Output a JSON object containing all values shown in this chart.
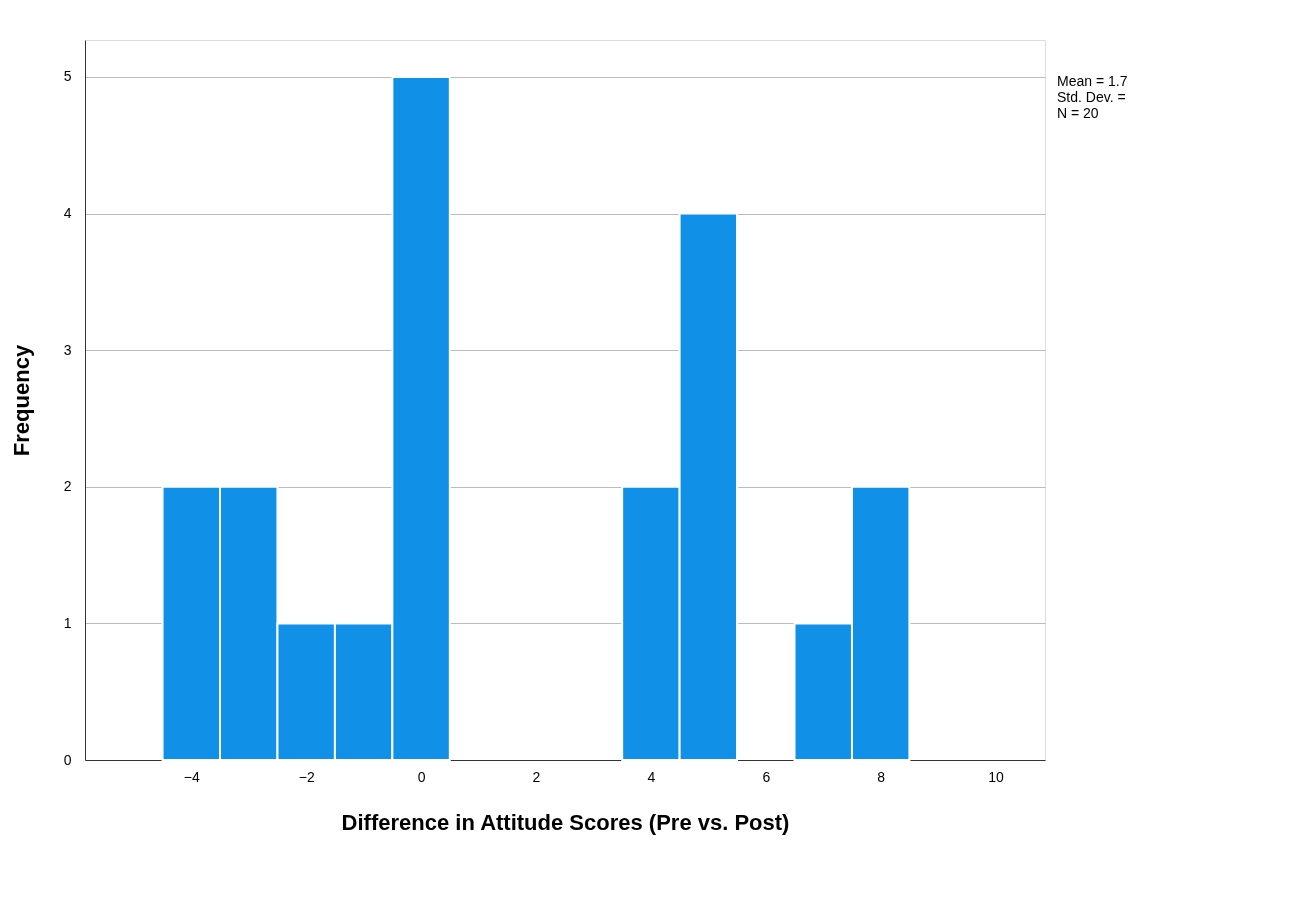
{
  "chart_data": {
    "type": "histogram",
    "xlabel": "Difference in Attitude Scores (Pre vs. Post)",
    "ylabel": "Frequency",
    "bins": [
      -4.5,
      -3.5,
      -2.5,
      -1.5,
      -0.5,
      0.5,
      1.5,
      2.5,
      3.5,
      4.5,
      5.5,
      6.5,
      7.5,
      8.5
    ],
    "values": [
      2,
      2,
      1,
      1,
      5,
      0,
      0,
      0,
      2,
      4,
      0,
      1,
      2
    ],
    "color": "#1190e8",
    "xlim": [
      -5.85,
      10.86
    ],
    "xticks": [
      -4,
      -2,
      0,
      2,
      4,
      6,
      8,
      10
    ],
    "ylim": [
      0,
      5.27
    ],
    "yticks": [
      0,
      1,
      2,
      3,
      4,
      5
    ],
    "grid": "y",
    "annotations": [
      "Mean = 1.7",
      "Std. Dev. =",
      "N = 20"
    ]
  }
}
